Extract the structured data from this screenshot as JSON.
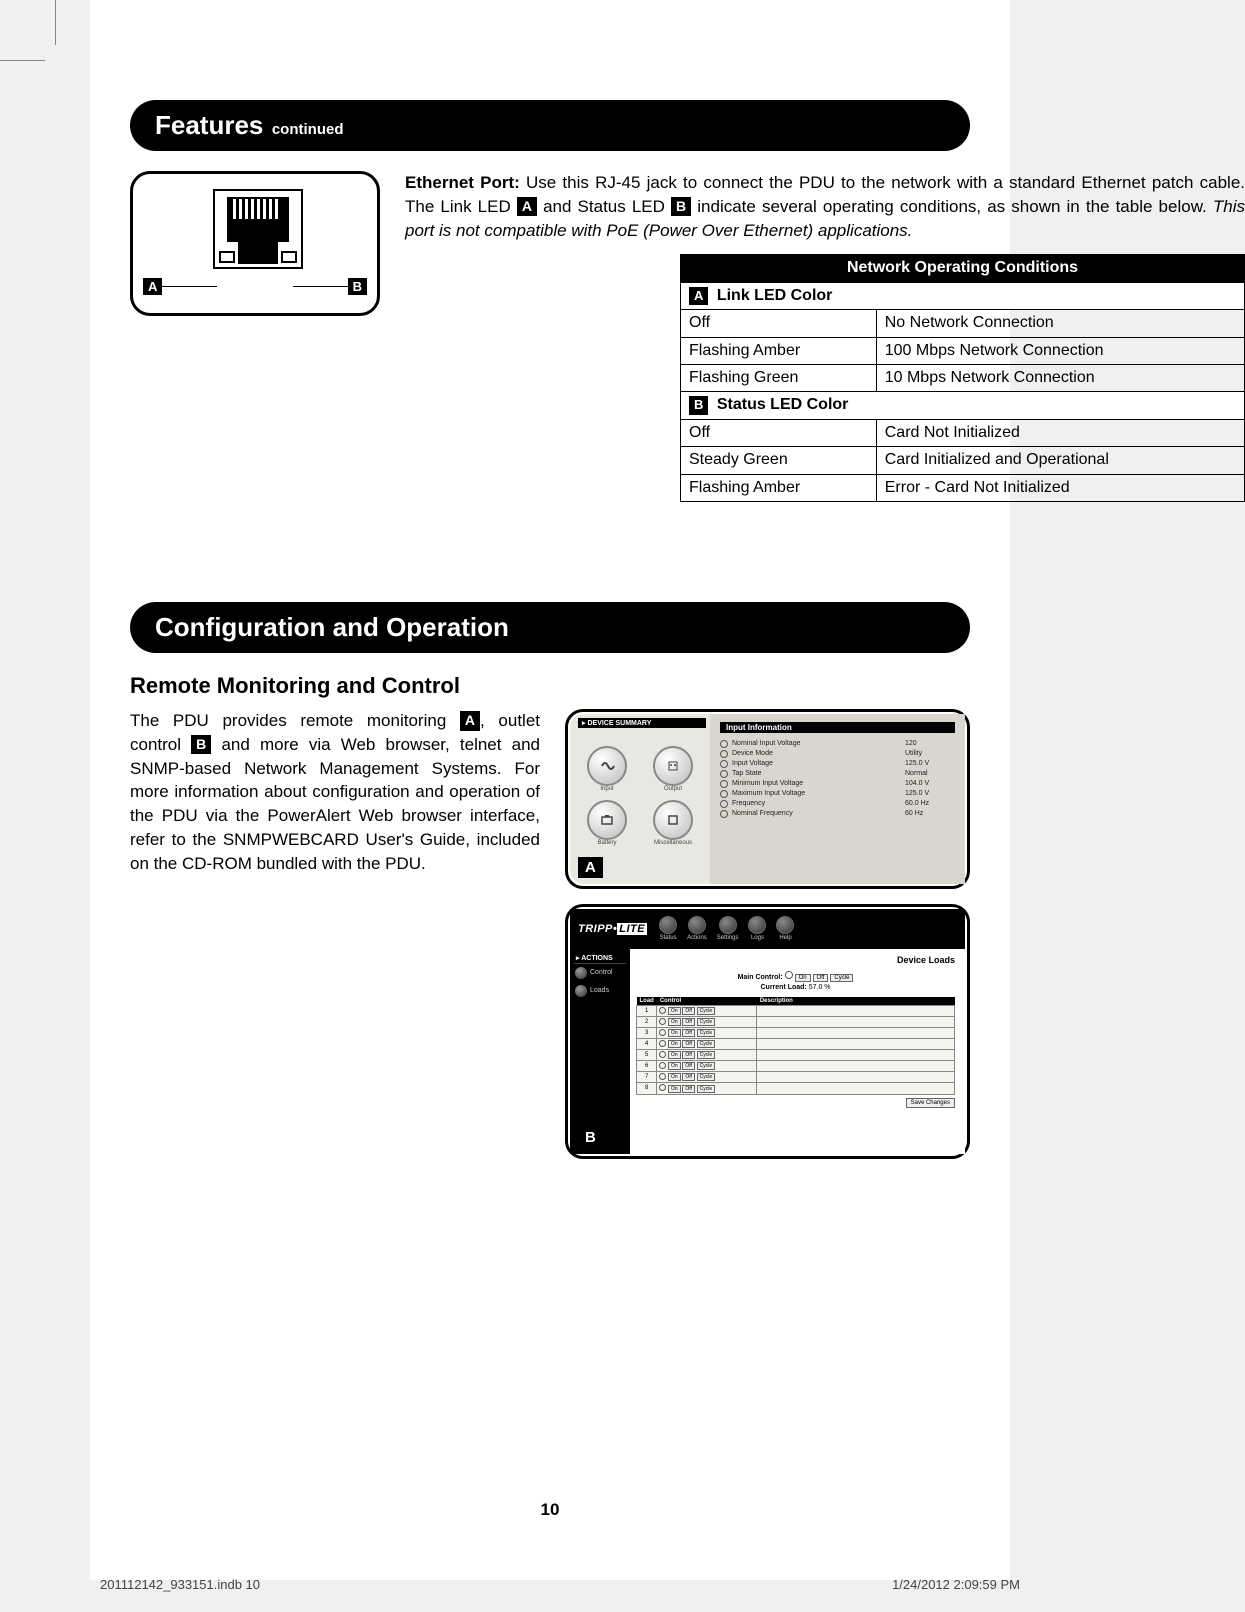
{
  "header_features": {
    "main": "Features",
    "sub": "continued"
  },
  "port": {
    "label_a": "A",
    "label_b": "B",
    "text_bold": "Ethernet Port:",
    "text_1": " Use this RJ-45 jack to connect the PDU to the network with a standard Ethernet patch cable. The Link LED ",
    "badge_a": "A",
    "text_2": " and Status LED ",
    "badge_b": "B",
    "text_3": " indicate several operating conditions, as shown in the table below. ",
    "italic": "This port is not compatible with PoE (Power Over Ethernet) applications."
  },
  "table": {
    "header": "Network Operating Conditions",
    "sub1_badge": "A",
    "sub1": " Link LED Color",
    "r1c1": "Off",
    "r1c2": "No Network Connection",
    "r2c1": "Flashing Amber",
    "r2c2": "100 Mbps Network Connection",
    "r3c1": "Flashing Green",
    "r3c2": "10 Mbps Network Connection",
    "sub2_badge": "B",
    "sub2": " Status LED Color",
    "r4c1": "Off",
    "r4c2": "Card Not Initialized",
    "r5c1": "Steady Green",
    "r5c2": "Card Initialized and Operational",
    "r6c1": "Flashing Amber",
    "r6c2": "Error - Card Not Initialized"
  },
  "header_config": "Configuration and Operation",
  "subsection": "Remote Monitoring and Control",
  "config_text": {
    "t1": "The PDU provides remote monitoring ",
    "ba": "A",
    "t2": ", outlet control ",
    "bb": "B",
    "t3": " and more via Web browser, telnet and SNMP-based Network Management Systems. For more information about configuration and operation of the PDU via the PowerAlert Web browser interface, refer to the SNMPWEBCARD User's Guide, included on the CD-ROM bundled with the PDU."
  },
  "shot_a": {
    "label": "A",
    "hdr": "DEVICE SUMMARY",
    "icons": {
      "i1": "Input",
      "i2": "Output",
      "i3": "Battery",
      "i4": "Miscellaneous"
    },
    "panel_title": "Input Information",
    "rows": [
      {
        "lbl": "Nominal Input Voltage",
        "val": "120"
      },
      {
        "lbl": "Device Mode",
        "val": "Utility"
      },
      {
        "lbl": "Input Voltage",
        "val": "125.0 V"
      },
      {
        "lbl": "Tap State",
        "val": "Normal"
      },
      {
        "lbl": "Minimum Input Voltage",
        "val": "104.0 V"
      },
      {
        "lbl": "Maximum Input Voltage",
        "val": "125.0 V"
      },
      {
        "lbl": "Frequency",
        "val": "60.0 Hz"
      },
      {
        "lbl": "Nominal Frequency",
        "val": "60 Hz"
      }
    ]
  },
  "shot_b": {
    "label": "B",
    "brand1": "TRIPP",
    "brand2": "LITE",
    "nav": [
      "Status",
      "Actions",
      "Settings",
      "Logs",
      "Help"
    ],
    "side_hdr": "ACTIONS",
    "side_items": [
      "Control",
      "Loads"
    ],
    "title": "Device Loads",
    "main_control_label": "Main Control:",
    "btns": {
      "on": "On",
      "off": "Off",
      "cycle": "Cycle"
    },
    "current_load_label": "Current Load:",
    "current_load_val": "57.0 %",
    "th_load": "Load",
    "th_control": "Control",
    "th_desc": "Description",
    "rows": [
      1,
      2,
      3,
      4,
      5,
      6,
      7,
      8
    ],
    "save": "Save Changes"
  },
  "page_number": "10",
  "footer": {
    "left": "201112142_933151.indb   10",
    "right": "1/24/2012   2:09:59 PM"
  }
}
